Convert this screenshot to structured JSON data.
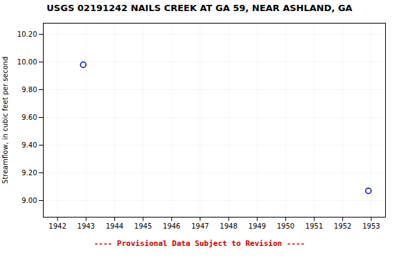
{
  "chart_data": {
    "type": "scatter",
    "title": "USGS 02191242 NAILS CREEK AT GA 59, NEAR ASHLAND, GA",
    "y_label": "Streamflow, in cubic feet per second",
    "x": [
      1942.9,
      1952.9
    ],
    "series": [
      {
        "name": "Streamflow",
        "color": "#0000cc",
        "marker": "circle",
        "values": [
          9.98,
          9.07
        ]
      }
    ],
    "xlim": [
      1941.5,
      1953.5
    ],
    "ylim": [
      8.88,
      10.28
    ],
    "xticks": [
      1942,
      1943,
      1944,
      1945,
      1946,
      1947,
      1948,
      1949,
      1950,
      1951,
      1952,
      1953
    ],
    "yticks": [
      {
        "value": 9.0,
        "label": "9.00"
      },
      {
        "value": 9.2,
        "label": "9.20"
      },
      {
        "value": 9.4,
        "label": "9.40"
      },
      {
        "value": 9.6,
        "label": "9.60"
      },
      {
        "value": 9.8,
        "label": "9.80"
      },
      {
        "value": 10.0,
        "label": "10.00"
      },
      {
        "value": 10.2,
        "label": "10.20"
      }
    ],
    "grid": true,
    "annotations": [
      {
        "text": "---- Provisional Data Subject to Revision ----",
        "color": "#cc0000"
      }
    ]
  }
}
